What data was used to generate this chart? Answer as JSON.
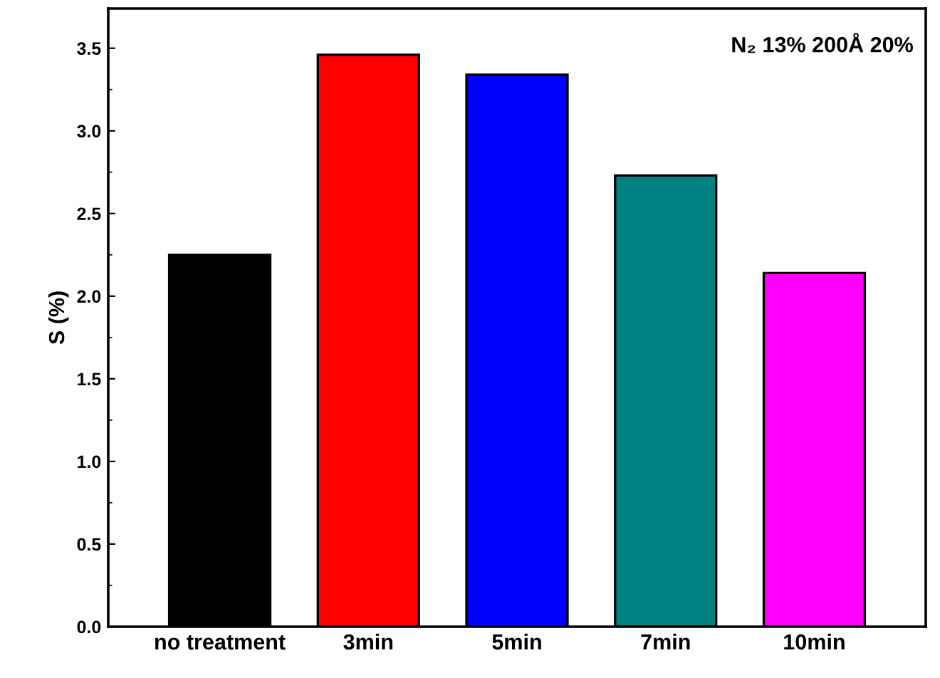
{
  "chart_data": {
    "type": "bar",
    "ylabel": "S (%)",
    "categories": [
      "no treatment",
      "3min",
      "5min",
      "7min",
      "10min"
    ],
    "values": [
      2.25,
      3.46,
      3.34,
      2.73,
      2.14
    ],
    "colors": [
      "#000000",
      "#ff0000",
      "#0000ff",
      "#008080",
      "#ff00ff"
    ],
    "ylim": [
      0,
      3.74
    ],
    "yticks": [
      {
        "value": 0,
        "label": "0.0"
      },
      {
        "value": 0.5,
        "label": "0.5"
      },
      {
        "value": 1.0,
        "label": "1.0"
      },
      {
        "value": 1.5,
        "label": "1.5"
      },
      {
        "value": 2.0,
        "label": "2.0"
      },
      {
        "value": 2.5,
        "label": "2.5"
      },
      {
        "value": 3.0,
        "label": "3.0"
      },
      {
        "value": 3.5,
        "label": "3.5"
      }
    ],
    "grid": false,
    "annotations": [
      "N₂ 13% 200Å 20%"
    ]
  }
}
